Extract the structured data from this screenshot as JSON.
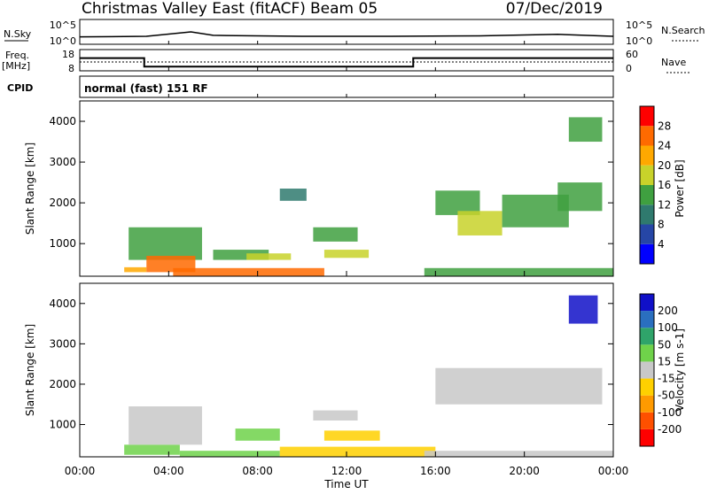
{
  "header": {
    "station": "Christmas Valley East (fitACF)",
    "beam": "Beam 05",
    "date": "07/Dec/2019"
  },
  "nsky_panel": {
    "left_label": "N.Sky",
    "right_label": "N.Search",
    "left_ticks": [
      "10^5",
      "10^0"
    ],
    "right_ticks": [
      "10^5",
      "10^0"
    ]
  },
  "freq_panel": {
    "left_label_1": "Freq.",
    "left_label_2": "[MHz]",
    "right_label": "Nave",
    "left_ticks": [
      "18",
      "8"
    ],
    "right_ticks": [
      "60",
      "0"
    ]
  },
  "cpid_panel": {
    "label": "CPID",
    "text": "normal (fast) 151 RF"
  },
  "power_panel": {
    "ylabel": "Slant Range [km]",
    "yticks": [
      "4000",
      "3000",
      "2000",
      "1000"
    ],
    "colorbar_label": "Power [dB]",
    "colorbar_ticks": [
      "28",
      "24",
      "20",
      "16",
      "12",
      "8",
      "4"
    ],
    "colors": [
      "#0000ff",
      "#2646a6",
      "#2f7a6e",
      "#3fa040",
      "#c8d22a",
      "#ffa800",
      "#ff6a00",
      "#ff0000"
    ]
  },
  "velocity_panel": {
    "ylabel": "Slant Range [km]",
    "yticks": [
      "4000",
      "3000",
      "2000",
      "1000"
    ],
    "colorbar_label": "Velocity [m s-1]",
    "colorbar_ticks": [
      "200",
      "100",
      "50",
      "15",
      "-15",
      "-50",
      "-100",
      "-200"
    ],
    "colors": [
      "#1010c8",
      "#2a6fbf",
      "#2fa46a",
      "#6fd24a",
      "#c8c8c8",
      "#ffd000",
      "#ff9a00",
      "#ff5000",
      "#ff0000"
    ]
  },
  "xaxis": {
    "label": "Time UT",
    "ticks": [
      "00:00",
      "04:00",
      "08:00",
      "12:00",
      "16:00",
      "20:00",
      "00:00"
    ]
  },
  "chart_data": [
    {
      "type": "line",
      "name": "N.Sky / N.Search",
      "x_hours": [
        0,
        3,
        5,
        6,
        10,
        14,
        18,
        21.5,
        24
      ],
      "values": [
        1.5,
        1.6,
        2.5,
        1.8,
        1.6,
        1.6,
        1.7,
        2.0,
        1.6
      ],
      "ylim": [
        0,
        5
      ]
    },
    {
      "type": "line",
      "name": "Frequency",
      "x_hours": [
        0,
        2.9,
        2.9,
        15,
        15,
        24
      ],
      "values": [
        14,
        14,
        10,
        10,
        14,
        14
      ],
      "ylim": [
        8,
        18
      ]
    },
    {
      "type": "heatmap",
      "name": "Power",
      "x_range_hours": [
        0,
        24
      ],
      "y_range_km": [
        200,
        4500
      ],
      "cells": [
        {
          "t": [
            2,
            3
          ],
          "r": [
            300,
            420
          ],
          "v": 20
        },
        {
          "t": [
            2.2,
            5.5
          ],
          "r": [
            600,
            1400
          ],
          "v": 14
        },
        {
          "t": [
            3,
            5.2
          ],
          "r": [
            300,
            700
          ],
          "v": 26
        },
        {
          "t": [
            4.2,
            11
          ],
          "r": [
            200,
            400
          ],
          "v": 26
        },
        {
          "t": [
            6,
            8.5
          ],
          "r": [
            600,
            850
          ],
          "v": 12
        },
        {
          "t": [
            7.5,
            9.5
          ],
          "r": [
            600,
            760
          ],
          "v": 18
        },
        {
          "t": [
            9,
            10.2
          ],
          "r": [
            2050,
            2350
          ],
          "v": 10
        },
        {
          "t": [
            10.5,
            12.5
          ],
          "r": [
            1050,
            1400
          ],
          "v": 14
        },
        {
          "t": [
            11,
            13
          ],
          "r": [
            650,
            850
          ],
          "v": 16
        },
        {
          "t": [
            15.5,
            24
          ],
          "r": [
            200,
            400
          ],
          "v": 14
        },
        {
          "t": [
            16,
            18
          ],
          "r": [
            1700,
            2300
          ],
          "v": 12
        },
        {
          "t": [
            17,
            19
          ],
          "r": [
            1200,
            1800
          ],
          "v": 18
        },
        {
          "t": [
            19,
            22
          ],
          "r": [
            1400,
            2200
          ],
          "v": 14
        },
        {
          "t": [
            21.5,
            23.5
          ],
          "r": [
            1800,
            2500
          ],
          "v": 12
        },
        {
          "t": [
            22,
            23.5
          ],
          "r": [
            3500,
            4100
          ],
          "v": 12
        }
      ]
    },
    {
      "type": "heatmap",
      "name": "Velocity",
      "x_range_hours": [
        0,
        24
      ],
      "y_range_km": [
        200,
        4500
      ],
      "cells": [
        {
          "t": [
            2,
            4.5
          ],
          "r": [
            250,
            500
          ],
          "v": 60
        },
        {
          "t": [
            2.2,
            5.5
          ],
          "r": [
            500,
            1450
          ],
          "v": 0
        },
        {
          "t": [
            4.5,
            9
          ],
          "r": [
            200,
            350
          ],
          "v": 30
        },
        {
          "t": [
            7,
            9
          ],
          "r": [
            600,
            900
          ],
          "v": 50
        },
        {
          "t": [
            10.5,
            12.5
          ],
          "r": [
            1100,
            1350
          ],
          "v": 0
        },
        {
          "t": [
            11,
            13.5
          ],
          "r": [
            600,
            850
          ],
          "v": -60
        },
        {
          "t": [
            9,
            16
          ],
          "r": [
            200,
            450
          ],
          "v": -50
        },
        {
          "t": [
            15.5,
            24
          ],
          "r": [
            200,
            350
          ],
          "v": -20
        },
        {
          "t": [
            16,
            23.5
          ],
          "r": [
            1500,
            2400
          ],
          "v": 0
        },
        {
          "t": [
            22,
            23.3
          ],
          "r": [
            3500,
            4200
          ],
          "v": 220
        }
      ]
    }
  ]
}
